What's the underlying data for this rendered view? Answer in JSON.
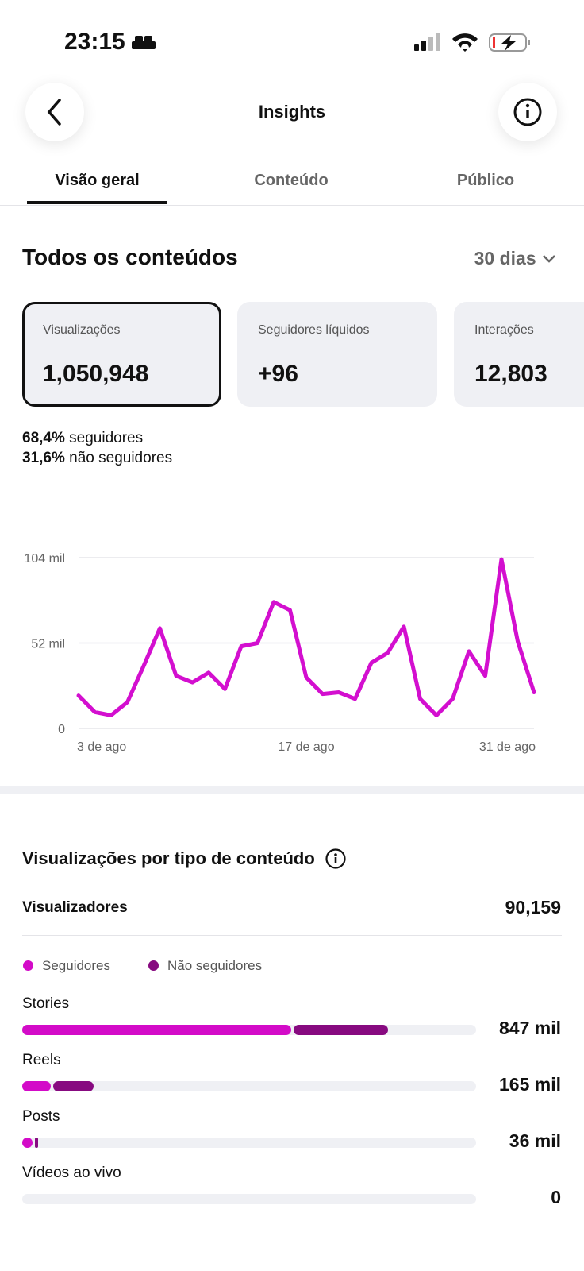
{
  "status_bar": {
    "time": "23:15"
  },
  "header": {
    "title": "Insights"
  },
  "tabs": [
    "Visão geral",
    "Conteúdo",
    "Público"
  ],
  "section": {
    "title": "Todos os conteúdos",
    "period": "30 dias"
  },
  "cards": [
    {
      "label": "Visualizações",
      "value": "1,050,948"
    },
    {
      "label": "Seguidores líquidos",
      "value": "+96"
    },
    {
      "label": "Interações",
      "value": "12,803"
    }
  ],
  "breakdown": [
    {
      "pct": "68,4%",
      "label": "seguidores"
    },
    {
      "pct": "31,6%",
      "label": "não seguidores"
    }
  ],
  "viewers": {
    "label": "Visualizadores",
    "value": "90,159"
  },
  "chart_data": [
    {
      "type": "line",
      "categories": [
        "3 de ago",
        null,
        null,
        null,
        null,
        null,
        null,
        null,
        null,
        null,
        null,
        null,
        null,
        null,
        "17 de ago",
        null,
        null,
        null,
        null,
        null,
        null,
        null,
        null,
        null,
        null,
        null,
        null,
        null,
        "31 de ago"
      ],
      "values": [
        20,
        10,
        8,
        16,
        38,
        61,
        32,
        28,
        34,
        24,
        50,
        52,
        77,
        72,
        31,
        21,
        22,
        18,
        40,
        46,
        62,
        18,
        8,
        18,
        47,
        32,
        103,
        53,
        22
      ],
      "color": "#d30fcf",
      "ylim": [
        0,
        104
      ],
      "yticks": [
        0,
        {
          "value": 52,
          "label": "52 mil"
        },
        {
          "value": 104,
          "label": "104 mil"
        }
      ],
      "grid": true
    },
    {
      "type": "bar",
      "orientation": "horizontal",
      "stacked": true,
      "title": "Visualizações por tipo de conteúdo",
      "categories": [
        "Stories",
        "Reels",
        "Posts",
        "Vídeos ao vivo"
      ],
      "series": [
        {
          "name": "Seguidores",
          "color": "#d30bc8",
          "values": [
            622,
            66,
            24,
            0
          ]
        },
        {
          "name": "Não seguidores",
          "color": "#870a80",
          "values": [
            225,
            99,
            12,
            0
          ]
        }
      ],
      "value_labels": [
        "847 mil",
        "165 mil",
        "36 mil",
        "0"
      ],
      "xlim": [
        0,
        1051
      ]
    }
  ]
}
